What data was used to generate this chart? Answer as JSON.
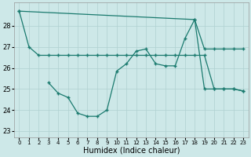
{
  "xlabel": "Humidex (Indice chaleur)",
  "bg_color": "#cde8e8",
  "line_color": "#1a7a6e",
  "grid_color": "#b0d0d0",
  "yticks": [
    23,
    24,
    25,
    26,
    27,
    28
  ],
  "ylim_low": 22.7,
  "ylim_high": 29.1,
  "xlim_low": -0.5,
  "xlim_high": 23.5,
  "line_top_x": [
    0,
    18,
    19,
    20,
    21,
    22,
    23
  ],
  "line_top_y": [
    28.7,
    28.3,
    26.9,
    26.9,
    26.9,
    26.9,
    26.9
  ],
  "line_mid_x": [
    0,
    1,
    2,
    3,
    4,
    5,
    6,
    7,
    8,
    9,
    10,
    11,
    12,
    13,
    14,
    15,
    16,
    17,
    18,
    19,
    20,
    21,
    22,
    23
  ],
  "line_mid_y": [
    28.7,
    27.0,
    26.6,
    26.6,
    26.6,
    26.6,
    26.6,
    26.6,
    26.6,
    26.6,
    26.6,
    26.6,
    26.6,
    26.6,
    26.6,
    26.6,
    26.6,
    26.6,
    26.6,
    26.6,
    25.0,
    25.0,
    25.0,
    24.9
  ],
  "line_bot_x": [
    3,
    4,
    5,
    6,
    7,
    8,
    9,
    10,
    11,
    12,
    13,
    14,
    15,
    16,
    17,
    18,
    19,
    20,
    21,
    22,
    23
  ],
  "line_bot_y": [
    25.3,
    24.8,
    24.6,
    23.85,
    23.7,
    23.7,
    24.0,
    25.85,
    26.2,
    26.8,
    26.9,
    26.2,
    26.1,
    26.1,
    27.4,
    28.3,
    25.0,
    25.0,
    25.0,
    25.0,
    24.9
  ]
}
